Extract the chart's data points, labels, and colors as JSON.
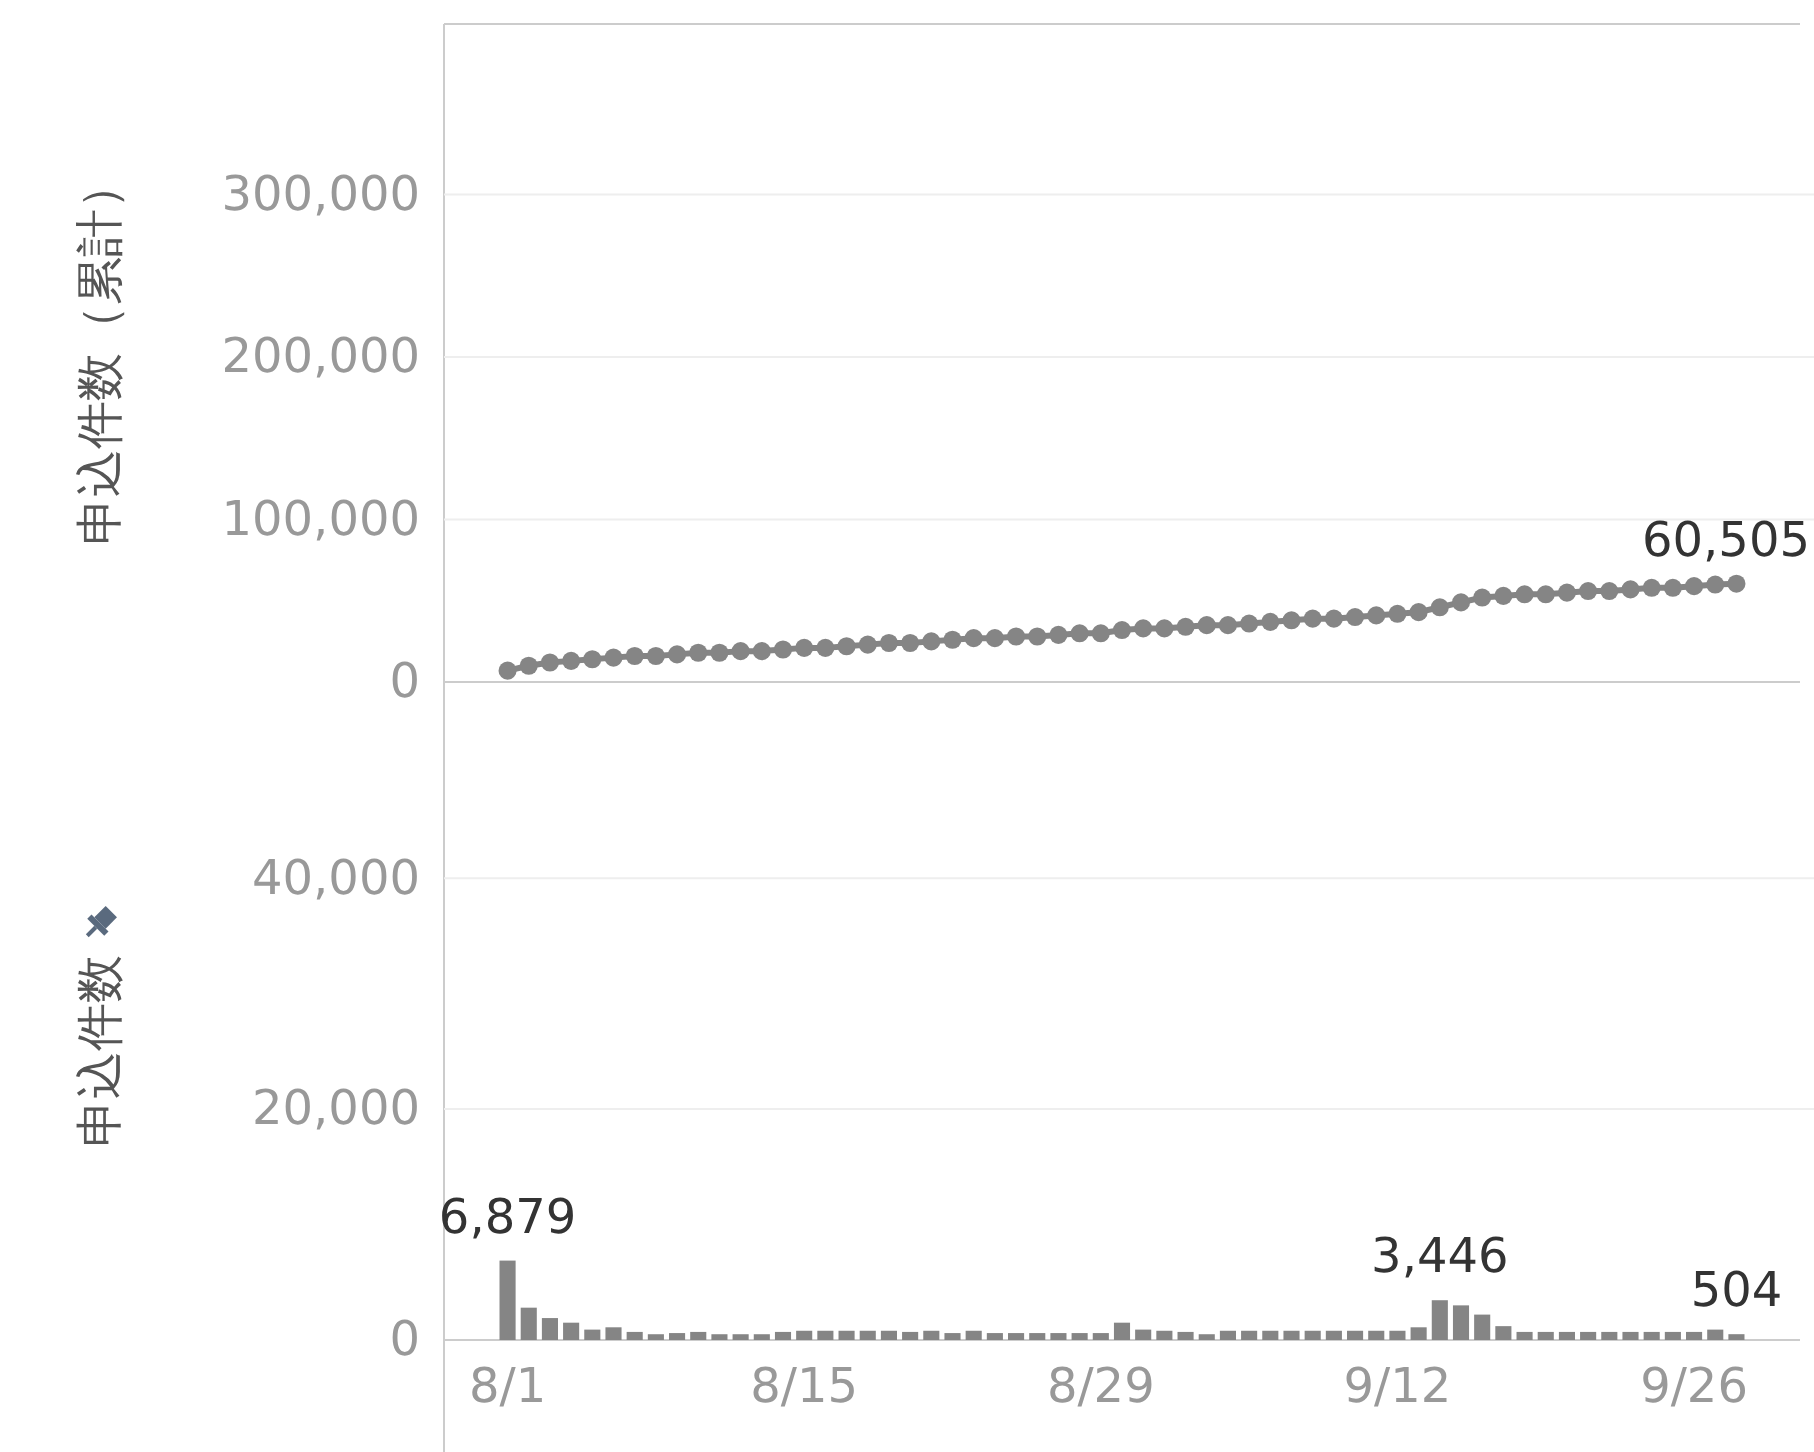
{
  "chart_data": [
    {
      "type": "line",
      "ylabel": "申込件数（累計）",
      "marker": "circle",
      "grid": "y",
      "tick_labels": "y",
      "xlim": [
        "--07-29",
        "--10-01"
      ],
      "ylim": [
        0,
        405000
      ],
      "yticks": [
        {
          "value": 0,
          "label": "0"
        },
        {
          "value": 100000,
          "label": "100,000"
        },
        {
          "value": 200000,
          "label": "200,000"
        },
        {
          "value": 300000,
          "label": "300,000"
        }
      ],
      "x": [
        "--08-01",
        "--08-02",
        "--08-03",
        "--08-04",
        "--08-05",
        "--08-06",
        "--08-07",
        "--08-08",
        "--08-09",
        "--08-10",
        "--08-11",
        "--08-12",
        "--08-13",
        "--08-14",
        "--08-15",
        "--08-16",
        "--08-17",
        "--08-18",
        "--08-19",
        "--08-20",
        "--08-21",
        "--08-22",
        "--08-23",
        "--08-24",
        "--08-25",
        "--08-26",
        "--08-27",
        "--08-28",
        "--08-29",
        "--08-30",
        "--08-31",
        "--09-01",
        "--09-02",
        "--09-03",
        "--09-04",
        "--09-05",
        "--09-06",
        "--09-07",
        "--09-08",
        "--09-09",
        "--09-10",
        "--09-11",
        "--09-12",
        "--09-13",
        "--09-14",
        "--09-15",
        "--09-16",
        "--09-17",
        "--09-18",
        "--09-19",
        "--09-20",
        "--09-21",
        "--09-22",
        "--09-23",
        "--09-24",
        "--09-25",
        "--09-26",
        "--09-27",
        "--09-28"
      ],
      "series": [
        {
          "color": "#858585",
          "values": [
            7000,
            10000,
            12000,
            13000,
            14000,
            15000,
            16000,
            16000,
            17000,
            18000,
            18000,
            19000,
            19000,
            20000,
            21000,
            21000,
            22000,
            23000,
            24000,
            24000,
            25000,
            26000,
            27000,
            27000,
            28000,
            28000,
            29000,
            30000,
            30000,
            32000,
            33000,
            33000,
            34000,
            35000,
            35000,
            36000,
            37000,
            38000,
            39000,
            39000,
            40000,
            41000,
            42000,
            43000,
            46000,
            49000,
            52000,
            53000,
            54000,
            54000,
            55000,
            56000,
            56000,
            57000,
            58000,
            58000,
            59000,
            60000,
            60505
          ],
          "value_labels": [
            null,
            null,
            null,
            null,
            null,
            null,
            null,
            null,
            null,
            null,
            null,
            null,
            null,
            null,
            null,
            null,
            null,
            null,
            null,
            null,
            null,
            null,
            null,
            null,
            null,
            null,
            null,
            null,
            null,
            null,
            null,
            null,
            null,
            null,
            null,
            null,
            null,
            null,
            null,
            null,
            null,
            null,
            null,
            null,
            null,
            null,
            null,
            null,
            null,
            null,
            null,
            null,
            null,
            null,
            null,
            null,
            null,
            null,
            "60,505"
          ]
        }
      ]
    },
    {
      "type": "bar",
      "ylabel": "申込件数",
      "grid": "y",
      "xlim": [
        "--07-29",
        "--10-01"
      ],
      "ylim": [
        0,
        57000
      ],
      "yticks": [
        {
          "value": 0,
          "label": "0"
        },
        {
          "value": 20000,
          "label": "20,000"
        },
        {
          "value": 40000,
          "label": "40,000"
        }
      ],
      "xticks": [
        {
          "value": "--08-01",
          "label": "8/1"
        },
        {
          "value": "--08-15",
          "label": "8/15"
        },
        {
          "value": "--08-29",
          "label": "8/29"
        },
        {
          "value": "--09-12",
          "label": "9/12"
        },
        {
          "value": "--09-26",
          "label": "9/26"
        }
      ],
      "x": [
        "--08-01",
        "--08-02",
        "--08-03",
        "--08-04",
        "--08-05",
        "--08-06",
        "--08-07",
        "--08-08",
        "--08-09",
        "--08-10",
        "--08-11",
        "--08-12",
        "--08-13",
        "--08-14",
        "--08-15",
        "--08-16",
        "--08-17",
        "--08-18",
        "--08-19",
        "--08-20",
        "--08-21",
        "--08-22",
        "--08-23",
        "--08-24",
        "--08-25",
        "--08-26",
        "--08-27",
        "--08-28",
        "--08-29",
        "--08-30",
        "--08-31",
        "--09-01",
        "--09-02",
        "--09-03",
        "--09-04",
        "--09-05",
        "--09-06",
        "--09-07",
        "--09-08",
        "--09-09",
        "--09-10",
        "--09-11",
        "--09-12",
        "--09-13",
        "--09-14",
        "--09-15",
        "--09-16",
        "--09-17",
        "--09-18",
        "--09-19",
        "--09-20",
        "--09-21",
        "--09-22",
        "--09-23",
        "--09-24",
        "--09-25",
        "--09-26",
        "--09-27",
        "--09-28"
      ],
      "series": [
        {
          "color": "#858585",
          "values": [
            6879,
            2800,
            1900,
            1500,
            900,
            1100,
            700,
            500,
            600,
            700,
            500,
            500,
            500,
            700,
            800,
            800,
            800,
            800,
            800,
            700,
            800,
            600,
            800,
            600,
            600,
            600,
            600,
            600,
            600,
            1500,
            900,
            800,
            700,
            500,
            800,
            800,
            800,
            800,
            800,
            800,
            800,
            800,
            800,
            1100,
            3446,
            3000,
            2200,
            1200,
            700,
            700,
            700,
            700,
            700,
            700,
            700,
            700,
            700,
            900,
            504
          ],
          "value_labels": [
            "6,879",
            null,
            null,
            null,
            null,
            null,
            null,
            null,
            null,
            null,
            null,
            null,
            null,
            null,
            null,
            null,
            null,
            null,
            null,
            null,
            null,
            null,
            null,
            null,
            null,
            null,
            null,
            null,
            null,
            null,
            null,
            null,
            null,
            null,
            null,
            null,
            null,
            null,
            null,
            null,
            null,
            null,
            null,
            null,
            "3,446",
            null,
            null,
            null,
            null,
            null,
            null,
            null,
            null,
            null,
            null,
            null,
            null,
            null,
            "504"
          ]
        }
      ]
    }
  ]
}
